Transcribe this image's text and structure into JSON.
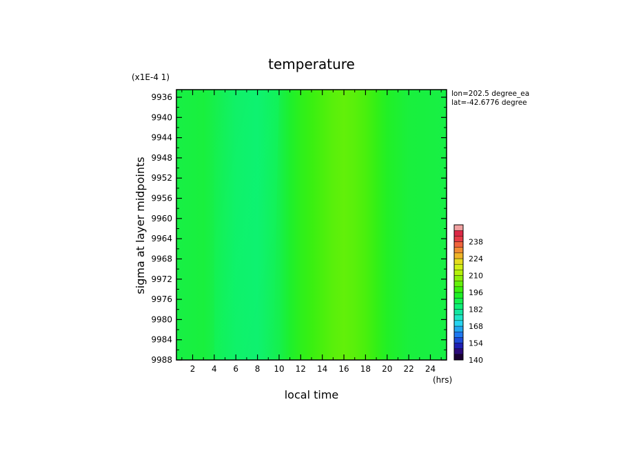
{
  "chart_data": {
    "type": "heatmap",
    "title": "temperature",
    "xlabel": "local time",
    "ylabel": "sigma at layer midpoints",
    "x_unit": "(hrs)",
    "y_scale_note": "(x1E-4 1)",
    "info_lines": [
      "lon=202.5 degree_ea",
      "lat=-42.6776 degree"
    ],
    "x_ticks": [
      "2",
      "4",
      "6",
      "8",
      "10",
      "12",
      "14",
      "16",
      "18",
      "20",
      "22",
      "24"
    ],
    "y_ticks": [
      "9936",
      "9940",
      "9944",
      "9948",
      "9952",
      "9956",
      "9960",
      "9964",
      "9968",
      "9972",
      "9976",
      "9980",
      "9984",
      "9988"
    ],
    "xlim": [
      0.5,
      25.5
    ],
    "ylim": [
      9988,
      9934.5
    ],
    "colorbar": {
      "ticks": [
        "140",
        "154",
        "168",
        "182",
        "196",
        "210",
        "224",
        "238"
      ],
      "min": 140,
      "max": 252,
      "colors": [
        "#1a0033",
        "#2b0a78",
        "#1f1fb4",
        "#1e4bd8",
        "#1f78f0",
        "#24a6f0",
        "#28d4f0",
        "#1fe6c8",
        "#14e6a0",
        "#0ff078",
        "#14f050",
        "#1ef028",
        "#3cf00f",
        "#64f00a",
        "#8cf00a",
        "#b4f00a",
        "#d2f014",
        "#e6dc1e",
        "#f0b428",
        "#f08c32",
        "#f0643c",
        "#e63c46",
        "#dc2846",
        "#f0a0a0"
      ]
    },
    "series": [
      {
        "x": [
          0.5,
          3,
          6,
          8,
          10,
          11,
          12,
          13,
          14,
          15,
          16,
          17,
          18,
          19,
          20,
          22,
          25.5
        ],
        "values": [
          190,
          191,
          186,
          185,
          189,
          193,
          196,
          198,
          200,
          202,
          203,
          202,
          200,
          197,
          194,
          191,
          190
        ]
      }
    ]
  }
}
